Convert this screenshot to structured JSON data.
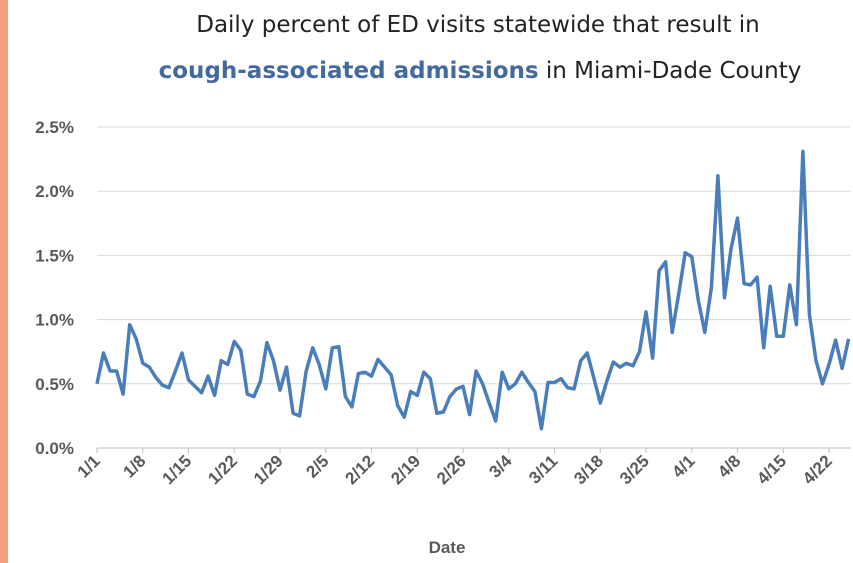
{
  "chart_data": {
    "type": "line",
    "title": "Daily percent of ED visits statewide that result in",
    "title_highlight": "cough-associated admissions",
    "title_end": "in Miami-Dade County",
    "x_label": "Date",
    "categories": [
      "1/1",
      null,
      null,
      null,
      null,
      null,
      null,
      "1/8",
      null,
      null,
      null,
      null,
      null,
      null,
      "1/15",
      null,
      null,
      null,
      null,
      null,
      null,
      "1/22",
      null,
      null,
      null,
      null,
      null,
      null,
      "1/29",
      null,
      null,
      null,
      null,
      null,
      null,
      "2/5",
      null,
      null,
      null,
      null,
      null,
      null,
      "2/12",
      null,
      null,
      null,
      null,
      null,
      null,
      "2/19",
      null,
      null,
      null,
      null,
      null,
      null,
      "2/26",
      null,
      null,
      null,
      null,
      null,
      null,
      "3/4",
      null,
      null,
      null,
      null,
      null,
      null,
      "3/11",
      null,
      null,
      null,
      null,
      null,
      null,
      "3/18",
      null,
      null,
      null,
      null,
      null,
      null,
      "3/25",
      null,
      null,
      null,
      null,
      null,
      null,
      "4/1",
      null,
      null,
      null,
      null,
      null,
      null,
      "4/8",
      null,
      null,
      null,
      null,
      null,
      null,
      "4/15",
      null,
      null,
      null,
      null,
      null,
      null,
      "4/22",
      null,
      null,
      null
    ],
    "series": [
      {
        "name": "cough-associated admissions",
        "color": "#4a7ebb",
        "values": [
          0.5,
          0.74,
          0.6,
          0.6,
          0.42,
          0.96,
          0.85,
          0.66,
          0.63,
          0.55,
          0.49,
          0.47,
          0.6,
          0.74,
          0.53,
          0.48,
          0.43,
          0.56,
          0.41,
          0.68,
          0.65,
          0.83,
          0.76,
          0.42,
          0.4,
          0.52,
          0.82,
          0.68,
          0.45,
          0.63,
          0.27,
          0.25,
          0.6,
          0.78,
          0.65,
          0.46,
          0.78,
          0.79,
          0.4,
          0.32,
          0.58,
          0.59,
          0.56,
          0.69,
          0.63,
          0.57,
          0.33,
          0.24,
          0.44,
          0.41,
          0.59,
          0.54,
          0.27,
          0.28,
          0.4,
          0.46,
          0.48,
          0.26,
          0.6,
          0.5,
          0.35,
          0.21,
          0.59,
          0.46,
          0.5,
          0.59,
          0.51,
          0.44,
          0.15,
          0.51,
          0.51,
          0.54,
          0.47,
          0.46,
          0.68,
          0.74,
          0.55,
          0.35,
          0.52,
          0.67,
          0.63,
          0.66,
          0.64,
          0.75,
          1.06,
          0.7,
          1.38,
          1.45,
          0.9,
          1.2,
          1.52,
          1.49,
          1.15,
          0.9,
          1.25,
          2.12,
          1.17,
          1.55,
          1.79,
          1.28,
          1.27,
          1.33,
          0.78,
          1.26,
          0.87,
          0.87,
          1.27,
          0.96,
          2.31,
          1.04,
          0.68,
          0.5,
          0.65,
          0.84,
          0.62,
          0.85
        ]
      }
    ],
    "ylim": [
      0,
      2.5
    ],
    "yticks": [
      {
        "value": 0,
        "label": "0.0%"
      },
      {
        "value": 0.5,
        "label": "0.5%"
      },
      {
        "value": 1,
        "label": "1.0%"
      },
      {
        "value": 1.5,
        "label": "1.5%"
      },
      {
        "value": 2,
        "label": "2.0%"
      },
      {
        "value": 2.5,
        "label": "2.5%"
      }
    ],
    "grid": true
  }
}
